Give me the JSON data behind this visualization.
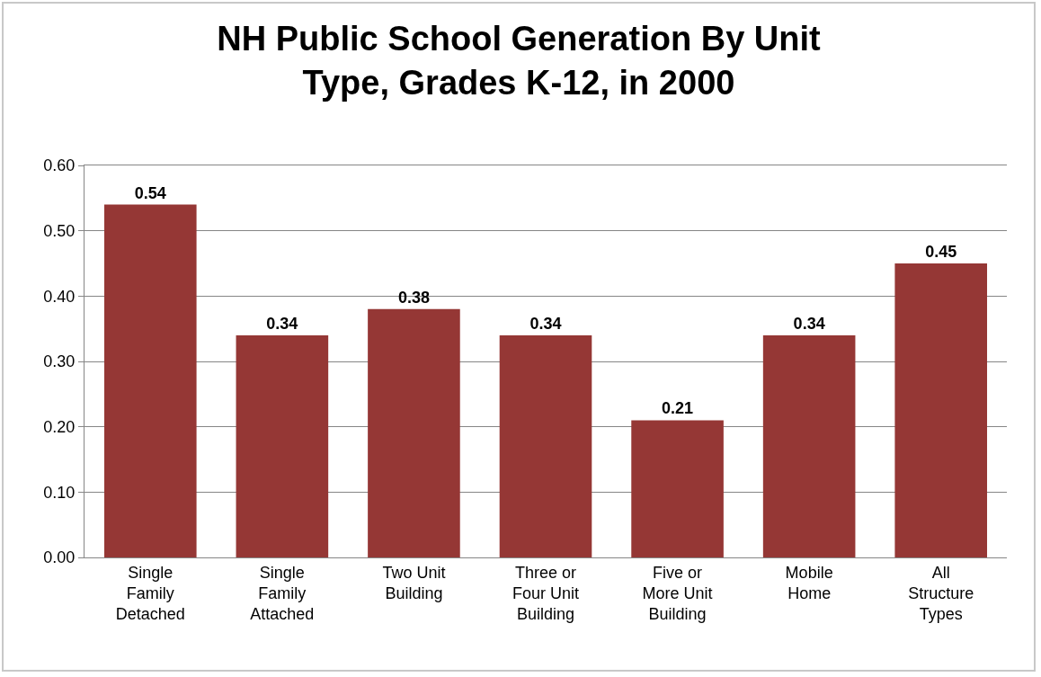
{
  "chart_data": {
    "type": "bar",
    "title": "NH Public School Generation By Unit Type, Grades K-12, in 2000",
    "categories": [
      "Single Family Detached",
      "Single Family Attached",
      "Two Unit Building",
      "Three or Four Unit Building",
      "Five or More Unit Building",
      "Mobile Home",
      "All Structure Types"
    ],
    "values": [
      0.54,
      0.34,
      0.38,
      0.34,
      0.21,
      0.34,
      0.45
    ],
    "color": "#953735",
    "ylim": [
      0,
      0.6
    ],
    "yticks": [
      {
        "value": 0,
        "label": "0.00"
      },
      {
        "value": 0.1,
        "label": "0.10"
      },
      {
        "value": 0.2,
        "label": "0.20"
      },
      {
        "value": 0.3,
        "label": "0.30"
      },
      {
        "value": 0.4,
        "label": "0.40"
      },
      {
        "value": 0.5,
        "label": "0.50"
      },
      {
        "value": 0.6,
        "label": "0.60"
      }
    ],
    "data_labels": true,
    "grid": "y"
  }
}
